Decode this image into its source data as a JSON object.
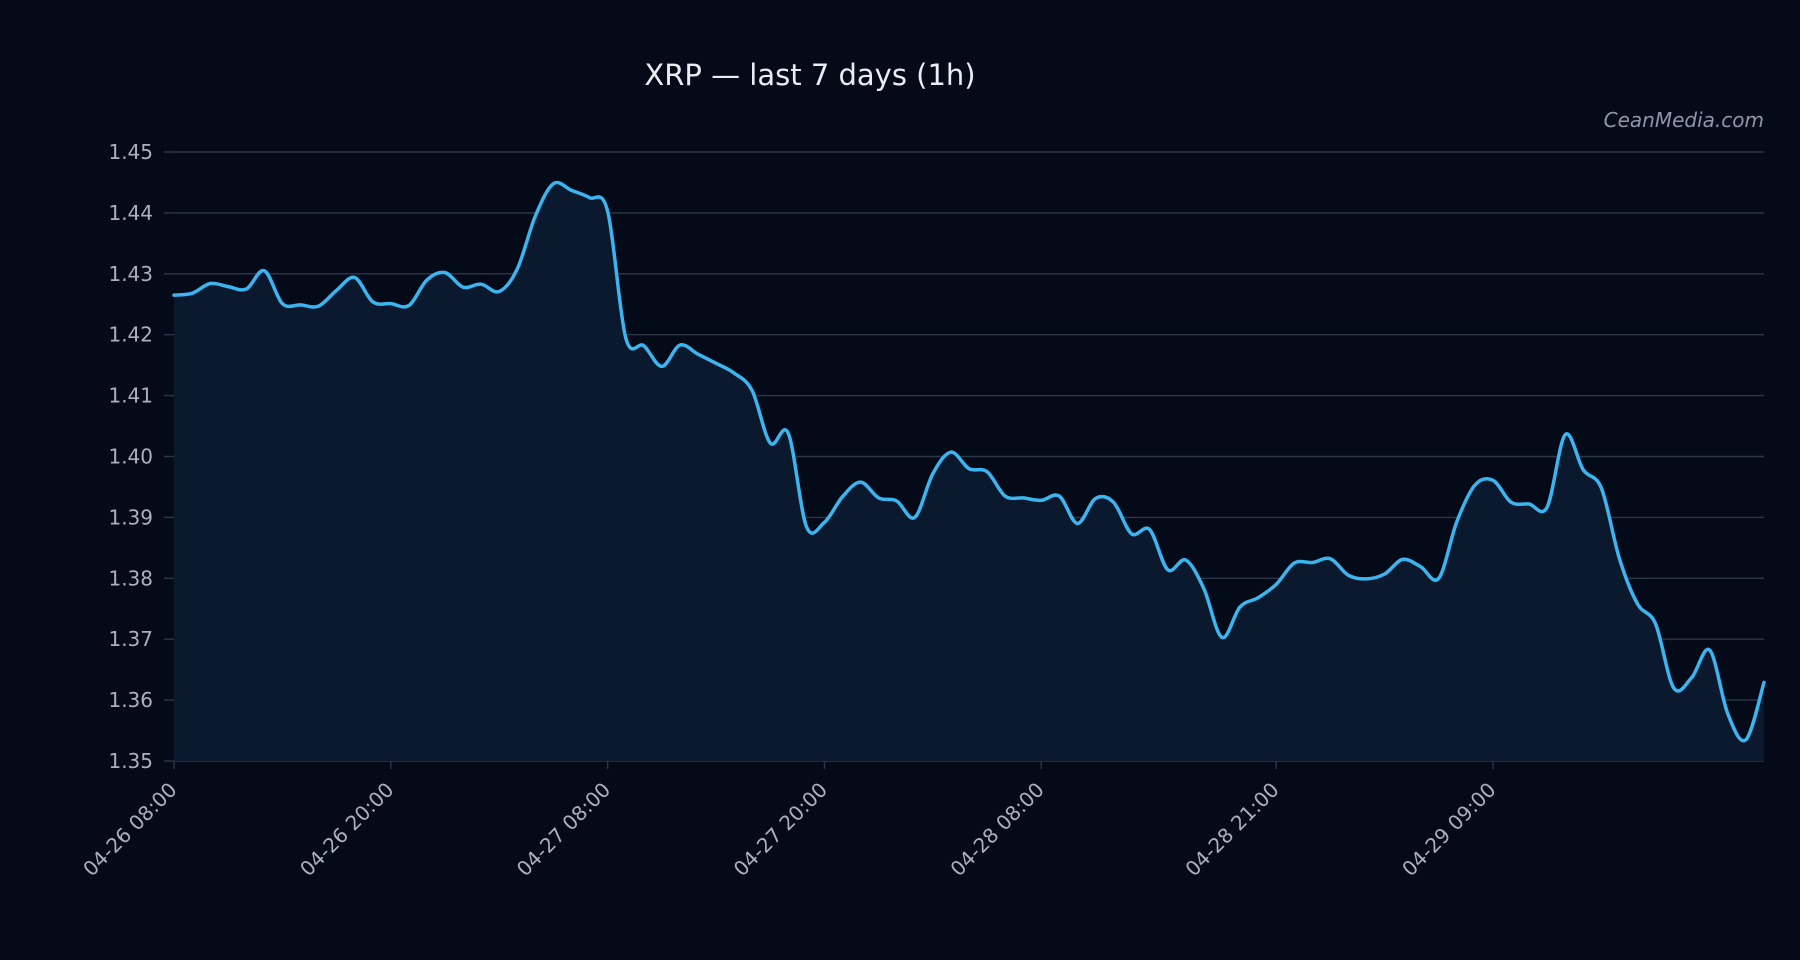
{
  "colors": {
    "background": "#050a18",
    "line": "#3cb4f0",
    "area": "#0b1a2e",
    "grid": "#2c3748",
    "text": "#a9b0be"
  },
  "watermark": "CeanMedia.com",
  "chart_data": {
    "type": "area",
    "title": "XRP — last 7 days (1h)",
    "xlabel": "",
    "ylabel": "",
    "ylim": [
      1.35,
      1.45
    ],
    "grid": true,
    "yticks": [
      "1.35",
      "1.36",
      "1.37",
      "1.38",
      "1.39",
      "1.40",
      "1.41",
      "1.42",
      "1.43",
      "1.44",
      "1.45"
    ],
    "xtick_labels": [
      "04-26 08:00",
      "04-26 20:00",
      "04-27 08:00",
      "04-27 20:00",
      "04-28 08:00",
      "04-28 21:00",
      "04-29 09:00"
    ],
    "x_start": "04-26 08:00",
    "x_end": "04-29 22:00",
    "series": [
      {
        "values": [
          1.4265,
          1.4268,
          1.4284,
          1.4279,
          1.4275,
          1.4305,
          1.4251,
          1.4249,
          1.4247,
          1.4273,
          1.4294,
          1.4254,
          1.4251,
          1.4248,
          1.429,
          1.4302,
          1.4278,
          1.4283,
          1.4271,
          1.4308,
          1.4395,
          1.4448,
          1.4437,
          1.4425,
          1.4403,
          1.4195,
          1.4182,
          1.4148,
          1.4183,
          1.4168,
          1.4153,
          1.4137,
          1.4108,
          1.4022,
          1.4038,
          1.3885,
          1.3892,
          1.3934,
          1.3958,
          1.3932,
          1.3927,
          1.39,
          1.3972,
          1.4007,
          1.398,
          1.3975,
          1.3935,
          1.3932,
          1.3928,
          1.3935,
          1.389,
          1.3931,
          1.3925,
          1.3873,
          1.388,
          1.3814,
          1.383,
          1.3783,
          1.3703,
          1.3753,
          1.3768,
          1.379,
          1.3825,
          1.3826,
          1.3832,
          1.3805,
          1.3799,
          1.3807,
          1.3831,
          1.3819,
          1.38,
          1.3893,
          1.3953,
          1.3961,
          1.3925,
          1.3922,
          1.3917,
          1.4036,
          1.3978,
          1.3948,
          1.3832,
          1.3758,
          1.3725,
          1.362,
          1.3637,
          1.3682,
          1.3577,
          1.3535,
          1.3629
        ]
      }
    ]
  }
}
